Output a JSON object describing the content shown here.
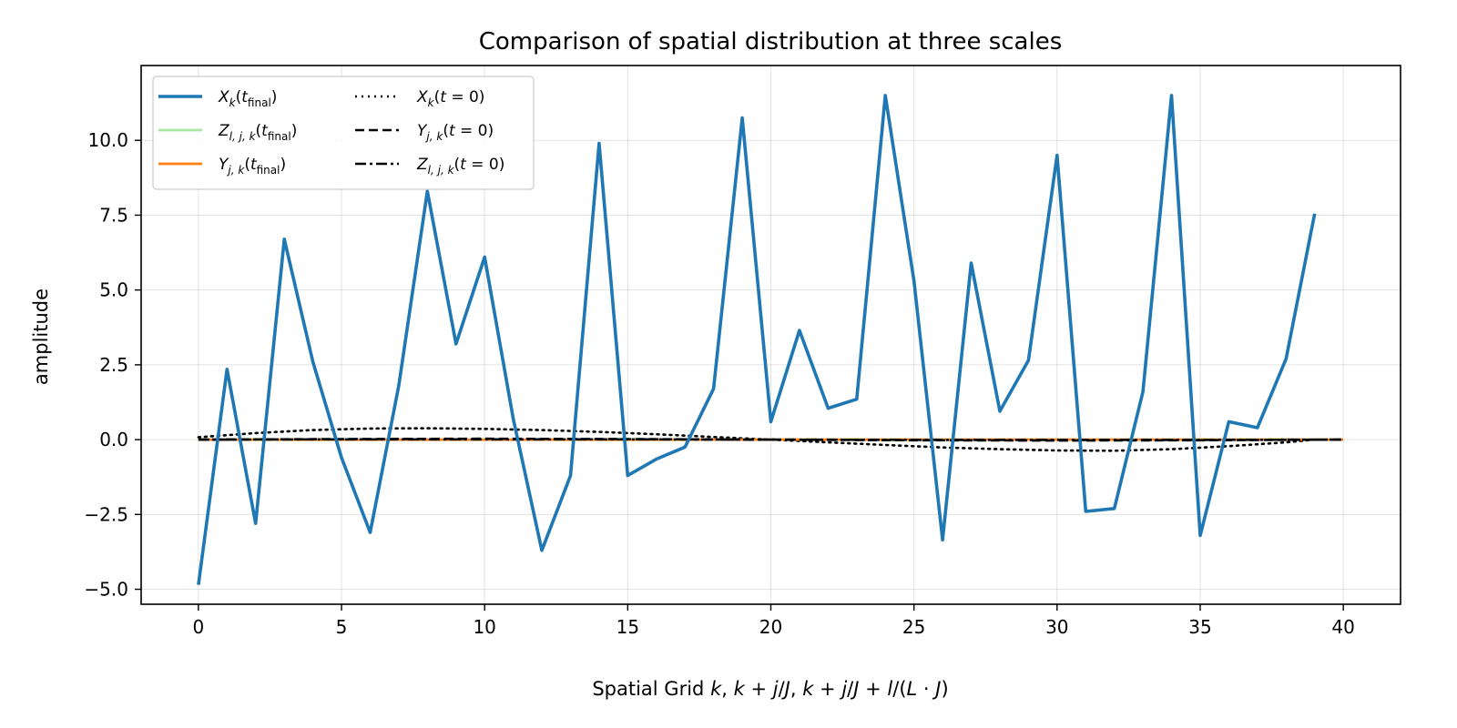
{
  "chart_data": {
    "type": "line",
    "title": "Comparison of spatial distribution at three scales",
    "xlabel": "Spatial Grid k, k + j/J, k + j/J + l/(L · J)",
    "ylabel": "amplitude",
    "xlim": [
      -2,
      42
    ],
    "ylim": [
      -5.5,
      12.5
    ],
    "xticks": [
      0,
      5,
      10,
      15,
      20,
      25,
      30,
      35,
      40
    ],
    "yticks": [
      -5.0,
      -2.5,
      0.0,
      2.5,
      5.0,
      7.5,
      10.0
    ],
    "xtick_labels": [
      "0",
      "5",
      "10",
      "15",
      "20",
      "25",
      "30",
      "35",
      "40"
    ],
    "ytick_labels": [
      "−5.0",
      "−2.5",
      "0.0",
      "2.5",
      "5.0",
      "7.5",
      "10.0"
    ],
    "grid": true,
    "legend_position": "top-left",
    "series": [
      {
        "name": "X_k(t_final)",
        "style": "solid",
        "color": "#1f77b4",
        "x": [
          0,
          1,
          2,
          3,
          4,
          5,
          6,
          7,
          8,
          9,
          10,
          11,
          12,
          13,
          14,
          15,
          16,
          17,
          18,
          19,
          20,
          21,
          22,
          23,
          24,
          25,
          26,
          27,
          28,
          29,
          30,
          31,
          32,
          33,
          34,
          35,
          36,
          37,
          38,
          39
        ],
        "y": [
          -4.85,
          2.35,
          -2.8,
          6.7,
          2.6,
          -0.6,
          -3.1,
          1.8,
          8.3,
          3.2,
          6.1,
          0.7,
          -3.7,
          -1.2,
          9.9,
          -1.2,
          -0.65,
          -0.25,
          1.7,
          10.75,
          0.6,
          3.65,
          1.05,
          1.35,
          11.5,
          5.3,
          -3.35,
          5.9,
          0.95,
          2.65,
          9.5,
          -2.4,
          -2.3,
          1.6,
          11.5,
          -3.2,
          0.6,
          0.4,
          2.7,
          7.55
        ]
      },
      {
        "name": "Z_l,j,k(t_final)",
        "style": "solid",
        "color": "#a8e8a0",
        "x": [
          0,
          5,
          10,
          15,
          20,
          25,
          30,
          35,
          40
        ],
        "y": [
          0,
          0,
          0,
          0,
          0,
          0,
          0,
          0,
          0
        ]
      },
      {
        "name": "Y_j,k(t_final)",
        "style": "solid",
        "color": "#ff7f0e",
        "x": [
          0,
          5,
          10,
          15,
          20,
          25,
          30,
          35,
          40
        ],
        "y": [
          0,
          0,
          0,
          0,
          0,
          0,
          0,
          0,
          0
        ]
      },
      {
        "name": "X_k(t = 0)",
        "style": "dotted",
        "color": "#000000",
        "x": [
          0,
          2,
          4,
          6,
          8,
          10,
          12,
          14,
          16,
          18,
          20,
          22,
          24,
          26,
          28,
          30,
          32,
          34,
          36,
          38,
          39
        ],
        "y": [
          0.08,
          0.22,
          0.32,
          0.37,
          0.38,
          0.36,
          0.32,
          0.26,
          0.18,
          0.09,
          0.0,
          -0.09,
          -0.18,
          -0.26,
          -0.32,
          -0.36,
          -0.37,
          -0.32,
          -0.22,
          -0.09,
          0.0
        ]
      },
      {
        "name": "Y_j,k(t = 0)",
        "style": "dashed",
        "color": "#000000",
        "x": [
          0,
          5,
          10,
          15,
          20,
          25,
          30,
          35,
          40
        ],
        "y": [
          0.0,
          0.02,
          0.03,
          0.02,
          0.0,
          -0.02,
          -0.03,
          -0.02,
          0.0
        ]
      },
      {
        "name": "Z_l,j,k(t = 0)",
        "style": "dashdot",
        "color": "#000000",
        "x": [
          0,
          5,
          10,
          15,
          20,
          25,
          30,
          35,
          40
        ],
        "y": [
          0.0,
          0.01,
          0.01,
          0.01,
          0.0,
          -0.01,
          -0.01,
          -0.01,
          0.0
        ]
      }
    ]
  }
}
